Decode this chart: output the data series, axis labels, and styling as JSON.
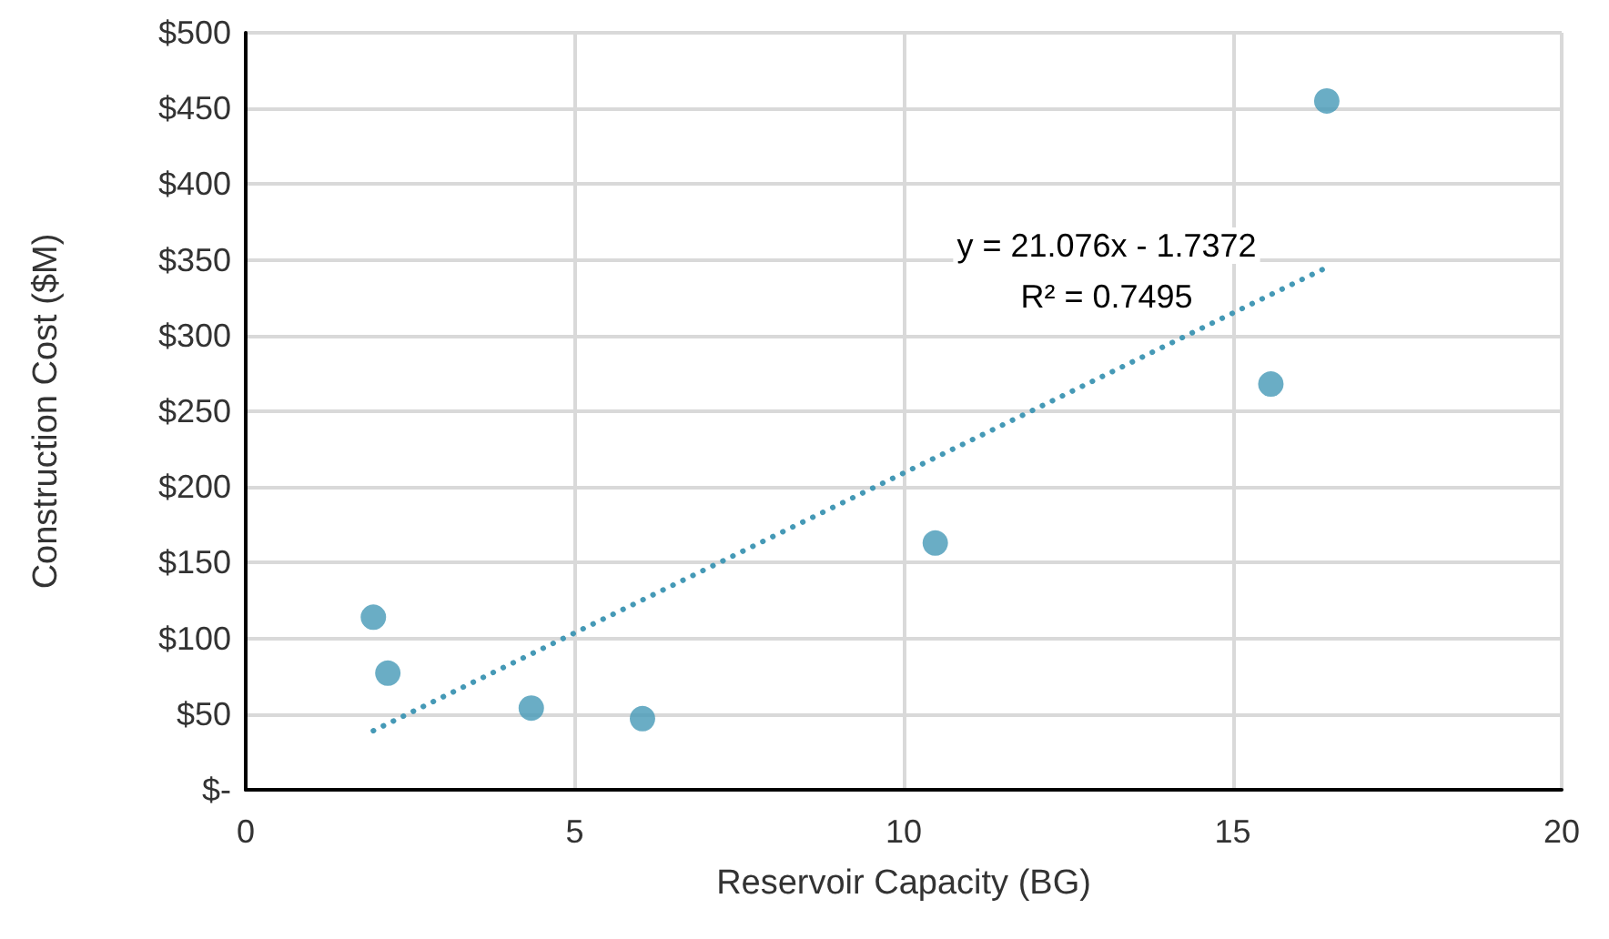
{
  "chart_data": {
    "type": "scatter",
    "xlabel": "Reservoir Capacity (BG)",
    "ylabel": "Construction Cost ($M)",
    "series": [
      {
        "color": "#4599b6",
        "x": [
          1.94,
          2.16,
          4.34,
          6.03,
          10.48,
          15.58,
          16.43
        ],
        "values": [
          114,
          77,
          54,
          47,
          163,
          268,
          455
        ],
        "marker": "circle"
      },
      {
        "type": "line",
        "color": "#4599b6",
        "x": [
          1.94,
          16.43
        ],
        "values": [
          39,
          345
        ],
        "line_style": "dotted",
        "marker": "none"
      }
    ],
    "annotations": [
      "y = 21.076x - 1.7372",
      "R² = 0.7495"
    ],
    "xlim": [
      0,
      20
    ],
    "xticks": [
      0,
      5,
      10,
      15,
      20
    ],
    "ylim": [
      0,
      500
    ],
    "yticks": [
      {
        "value": 0,
        "label": "$-"
      },
      {
        "value": 50,
        "label": "$50"
      },
      {
        "value": 100,
        "label": "$100"
      },
      {
        "value": 150,
        "label": "$150"
      },
      {
        "value": 200,
        "label": "$200"
      },
      {
        "value": 250,
        "label": "$250"
      },
      {
        "value": 300,
        "label": "$300"
      },
      {
        "value": 350,
        "label": "$350"
      },
      {
        "value": 400,
        "label": "$400"
      },
      {
        "value": 450,
        "label": "$450"
      },
      {
        "value": 500,
        "label": "$500"
      }
    ],
    "grid": true
  }
}
